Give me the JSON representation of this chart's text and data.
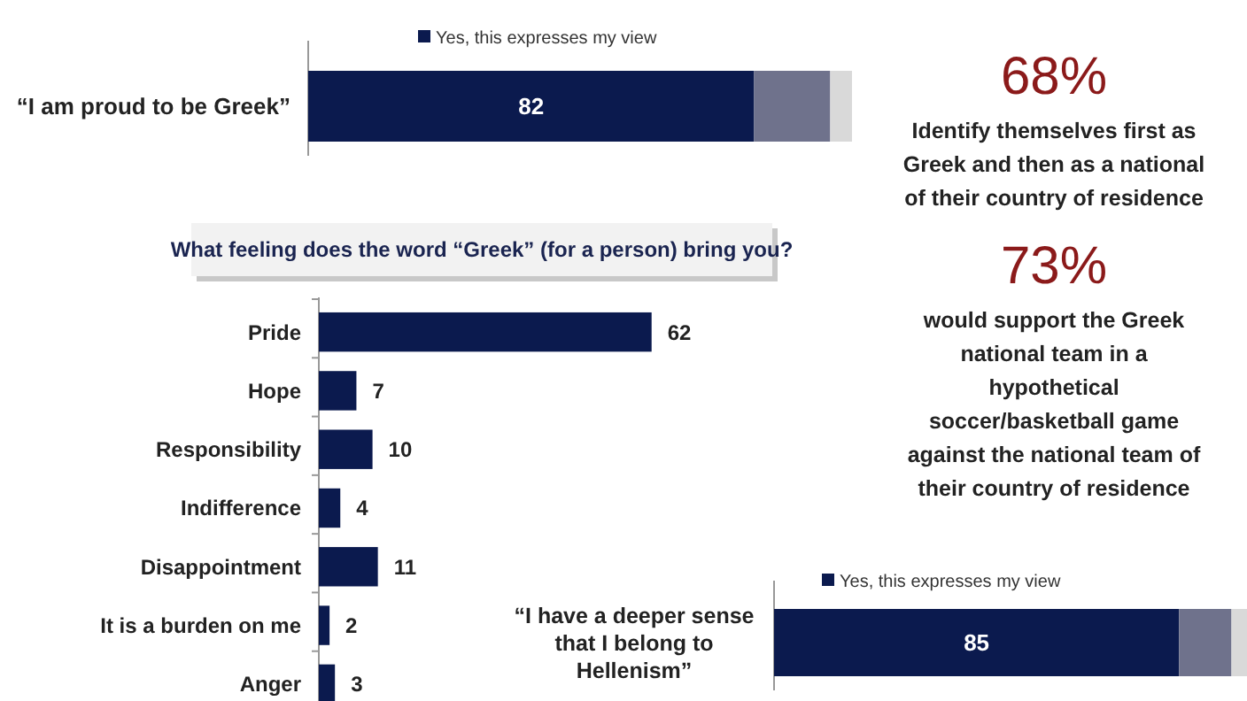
{
  "chart_data": [
    {
      "type": "bar",
      "orientation": "horizontal",
      "stacked": true,
      "categories": [
        "“I am proud to be Greek”"
      ],
      "tick_labels": "y",
      "legend": "top",
      "series": [
        {
          "name": "Yes, this expresses my view",
          "color": "#0b1a4e",
          "values": [
            82
          ],
          "value_labels": [
            "82"
          ]
        },
        {
          "color": "#6f728c",
          "values": [
            14
          ]
        },
        {
          "color": "#d9d9d9",
          "values": [
            4
          ]
        }
      ]
    },
    {
      "type": "other",
      "annotations": [
        "68%",
        "Identify themselves first as Greek and then as a national of their country of residence",
        "73%",
        "would support the Greek national team in a hypothetical soccer/basketball game against the national team of their country of residence"
      ]
    },
    {
      "type": "bar",
      "orientation": "horizontal",
      "title": "What feeling does the word “Greek” (for a person) bring you?",
      "categories": [
        "Pride",
        "Hope",
        "Responsibility",
        "Indifference",
        "Disappointment",
        "It is a burden on me",
        "Anger"
      ],
      "values": [
        62,
        7,
        10,
        4,
        11,
        2,
        3
      ],
      "color": "#0b1a4e",
      "tick_labels": "y",
      "data_labels": true
    },
    {
      "type": "bar",
      "orientation": "horizontal",
      "stacked": true,
      "categories": [
        "“I have a deeper sense that I belong to Hellenism”"
      ],
      "tick_labels": "y",
      "legend": "top",
      "series": [
        {
          "name": "Yes, this expresses my view",
          "color": "#0b1a4e",
          "values": [
            85
          ],
          "value_labels": [
            "85"
          ]
        },
        {
          "color": "#6f728c",
          "values": [
            11
          ]
        },
        {
          "color": "#d9d9d9",
          "values": [
            4
          ]
        }
      ]
    }
  ]
}
